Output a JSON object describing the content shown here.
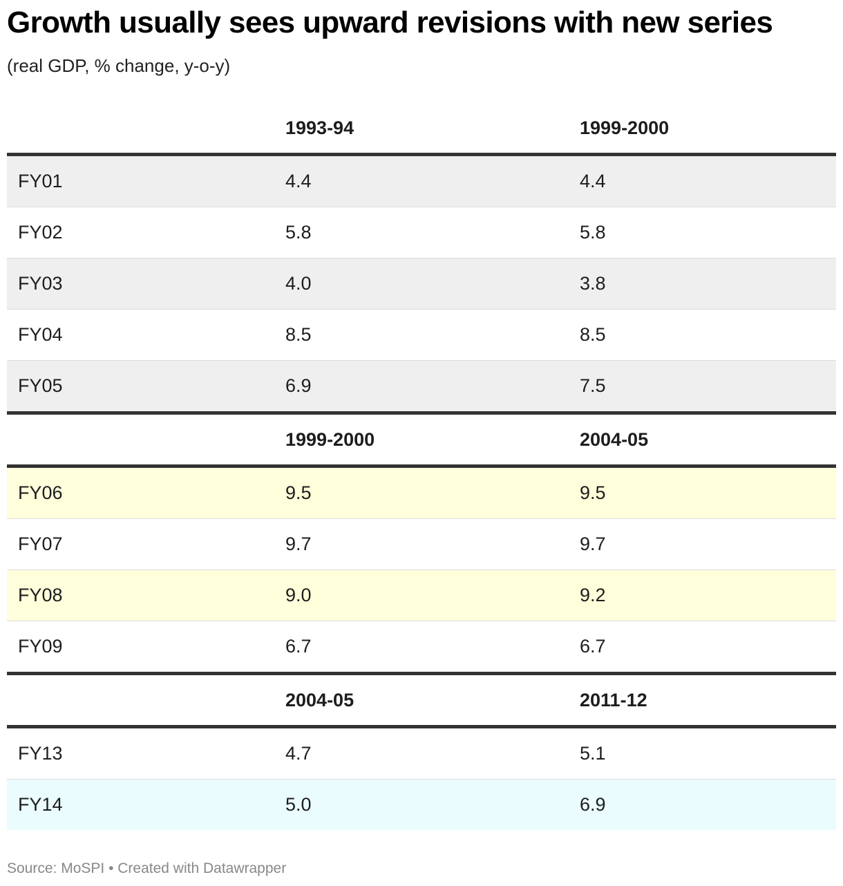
{
  "title": "Growth usually sees upward revisions with new series",
  "subtitle": "(real GDP, % change, y-o-y)",
  "footer": {
    "source": "Source: MoSPI",
    "separator": " • ",
    "credit": "Created with Datawrapper"
  },
  "colors": {
    "stripe_grey": "#efefef",
    "stripe_yellow": "#ffffdb",
    "stripe_cyan": "#eafcfd",
    "rule": "#333333"
  },
  "chart_data": {
    "type": "table",
    "sections": [
      {
        "headers": [
          "",
          "1993-94",
          "1999-2000"
        ],
        "highlight": "#efefef",
        "rows": [
          {
            "label": "FY01",
            "values": [
              "4.4",
              "4.4"
            ],
            "fill": "#efefef"
          },
          {
            "label": "FY02",
            "values": [
              "5.8",
              "5.8"
            ],
            "fill": "#ffffff"
          },
          {
            "label": "FY03",
            "values": [
              "4.0",
              "3.8"
            ],
            "fill": "#efefef"
          },
          {
            "label": "FY04",
            "values": [
              "8.5",
              "8.5"
            ],
            "fill": "#ffffff"
          },
          {
            "label": "FY05",
            "values": [
              "6.9",
              "7.5"
            ],
            "fill": "#efefef"
          }
        ]
      },
      {
        "headers": [
          "",
          "1999-2000",
          "2004-05"
        ],
        "highlight": "#ffffdb",
        "rows": [
          {
            "label": "FY06",
            "values": [
              "9.5",
              "9.5"
            ],
            "fill": "#ffffdb"
          },
          {
            "label": "FY07",
            "values": [
              "9.7",
              "9.7"
            ],
            "fill": "#ffffff"
          },
          {
            "label": "FY08",
            "values": [
              "9.0",
              "9.2"
            ],
            "fill": "#ffffdb"
          },
          {
            "label": "FY09",
            "values": [
              "6.7",
              "6.7"
            ],
            "fill": "#ffffff"
          }
        ]
      },
      {
        "headers": [
          "",
          "2004-05",
          "2011-12"
        ],
        "highlight": "#eafcfd",
        "rows": [
          {
            "label": "FY13",
            "values": [
              "4.7",
              "5.1"
            ],
            "fill": "#ffffff"
          },
          {
            "label": "FY14",
            "values": [
              "5.0",
              "6.9"
            ],
            "fill": "#eafcfd"
          }
        ]
      }
    ]
  }
}
